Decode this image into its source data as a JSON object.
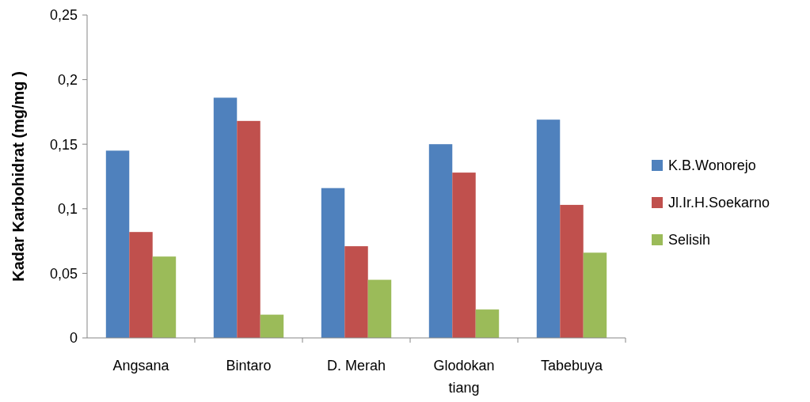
{
  "chart_data": {
    "type": "bar",
    "ylabel": "Kadar Karbohidrat (mg/mg )",
    "categories": [
      "Angsana",
      "Bintaro",
      "D. Merah",
      "Glodokan tiang",
      "Tabebuya"
    ],
    "series": [
      {
        "name": "K.B.Wonorejo",
        "color": "#4f81bd",
        "values": [
          0.145,
          0.186,
          0.116,
          0.15,
          0.169
        ]
      },
      {
        "name": "Jl.Ir.H.Soekarno",
        "color": "#c0504d",
        "values": [
          0.082,
          0.168,
          0.071,
          0.128,
          0.103
        ]
      },
      {
        "name": "Selisih",
        "color": "#9bbb59",
        "values": [
          0.063,
          0.018,
          0.045,
          0.022,
          0.066
        ]
      }
    ],
    "ylim": [
      0,
      0.25
    ],
    "yticks": [
      0,
      {
        "value": 0.05,
        "label": "0,05"
      },
      {
        "value": 0.1,
        "label": "0,1"
      },
      {
        "value": 0.15,
        "label": "0,15"
      },
      {
        "value": 0.2,
        "label": "0,2"
      },
      {
        "value": 0.25,
        "label": "0,25"
      }
    ],
    "grid": false,
    "legend": "right"
  }
}
